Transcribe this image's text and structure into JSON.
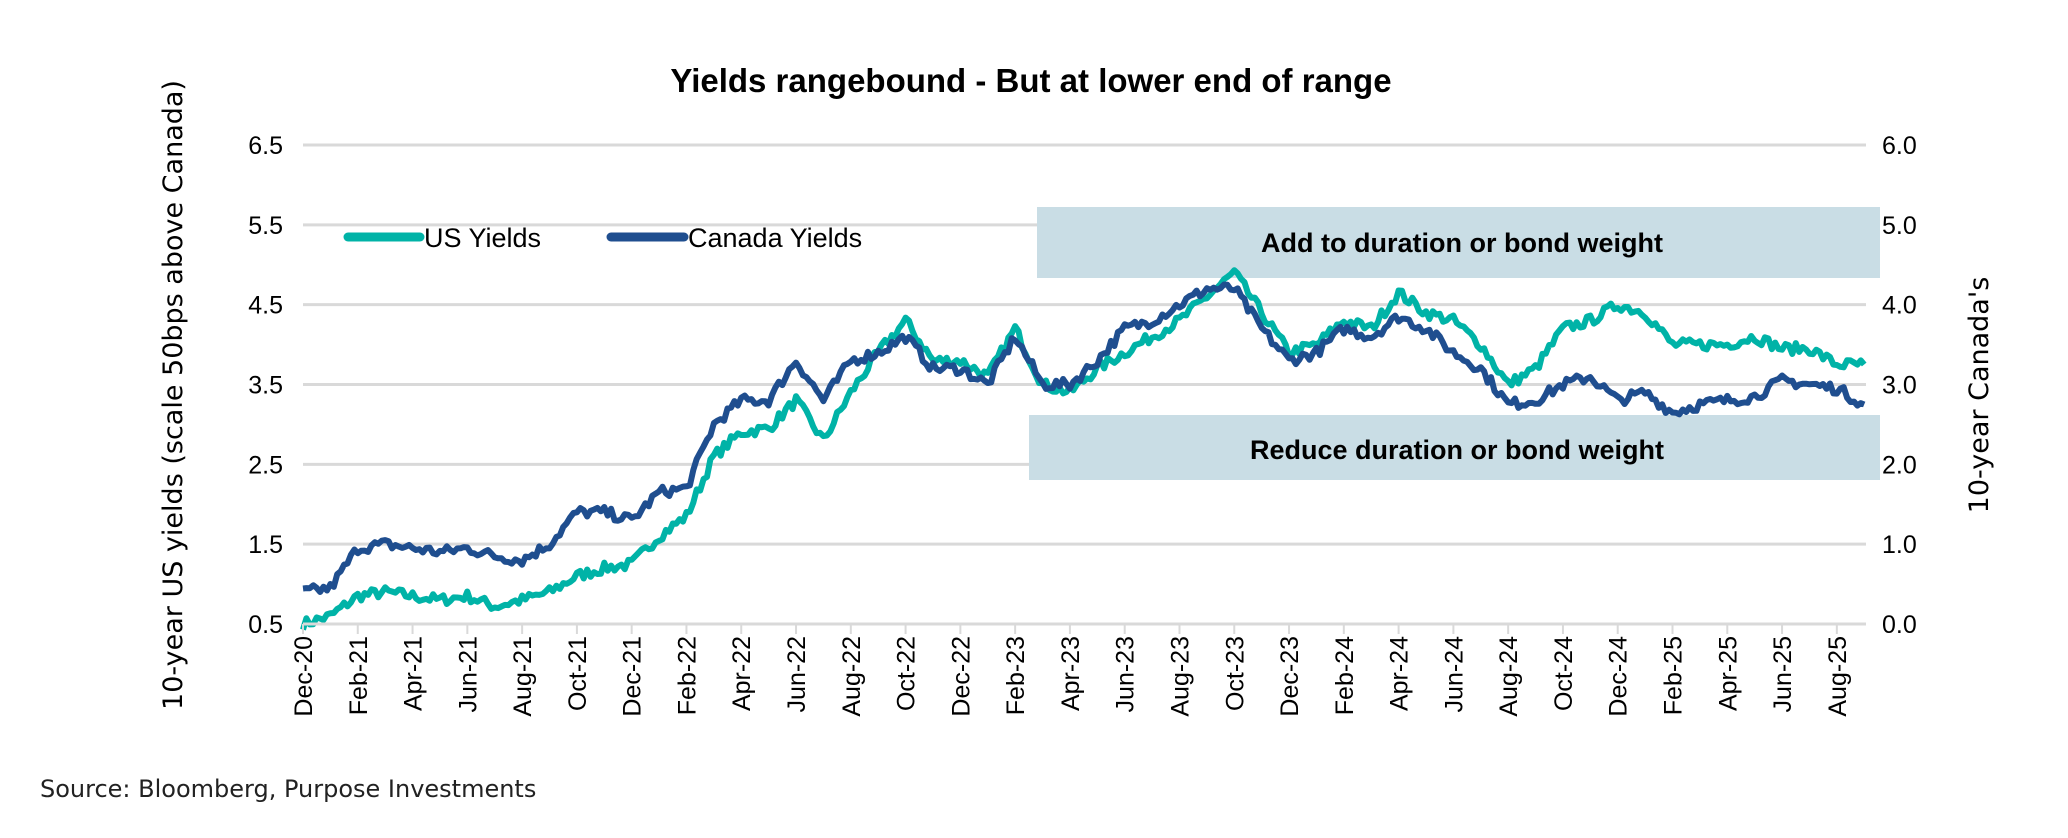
{
  "chart_data": {
    "type": "line",
    "title": "Yields rangebound - But at lower end of range",
    "ylabel_left": "10-year US yields (scale 50bps above Canada)",
    "ylabel_right": "10-year Canada's",
    "ylim_left": [
      0.5,
      6.5
    ],
    "ylim_right": [
      0.0,
      6.0
    ],
    "yticks_left": [
      "0.5",
      "1.5",
      "2.5",
      "3.5",
      "4.5",
      "5.5",
      "6.5"
    ],
    "yticks_right": [
      "0.0",
      "1.0",
      "2.0",
      "3.0",
      "4.0",
      "5.0",
      "6.0"
    ],
    "grid": true,
    "legend_placement": "top-left",
    "xticks": [
      "Dec-20",
      "Feb-21",
      "Apr-21",
      "Jun-21",
      "Aug-21",
      "Oct-21",
      "Dec-21",
      "Feb-22",
      "Apr-22",
      "Jun-22",
      "Aug-22",
      "Oct-22",
      "Dec-22",
      "Feb-23",
      "Apr-23",
      "Jun-23",
      "Aug-23",
      "Oct-23",
      "Dec-23",
      "Feb-24",
      "Apr-24",
      "Jun-24",
      "Aug-24",
      "Oct-24",
      "Dec-24",
      "Feb-25",
      "Apr-25",
      "Jun-25",
      "Aug-25"
    ],
    "x": [
      "Dec-20",
      "Jan-21",
      "Feb-21",
      "Mar-21",
      "Apr-21",
      "May-21",
      "Jun-21",
      "Jul-21",
      "Aug-21",
      "Sep-21",
      "Oct-21",
      "Nov-21",
      "Dec-21",
      "Jan-22",
      "Feb-22",
      "Mar-22",
      "Apr-22",
      "May-22",
      "Jun-22",
      "Jul-22",
      "Aug-22",
      "Sep-22",
      "Oct-22",
      "Nov-22",
      "Dec-22",
      "Jan-23",
      "Feb-23",
      "Mar-23",
      "Apr-23",
      "May-23",
      "Jun-23",
      "Jul-23",
      "Aug-23",
      "Sep-23",
      "Oct-23",
      "Nov-23",
      "Dec-23",
      "Jan-24",
      "Feb-24",
      "Mar-24",
      "Apr-24",
      "May-24",
      "Jun-24",
      "Jul-24",
      "Aug-24",
      "Sep-24",
      "Oct-24",
      "Nov-24",
      "Dec-24",
      "Jan-25",
      "Feb-25",
      "Mar-25",
      "Apr-25",
      "May-25",
      "Jun-25",
      "Jul-25",
      "Aug-25",
      "Sep-25"
    ],
    "series": [
      {
        "name": "US Yields",
        "axis": "left",
        "color": "#00b3a7",
        "values": [
          0.5,
          0.6,
          0.85,
          0.9,
          0.85,
          0.8,
          0.85,
          0.72,
          0.8,
          0.9,
          1.1,
          1.2,
          1.25,
          1.6,
          1.85,
          2.6,
          2.9,
          2.95,
          3.3,
          2.8,
          3.4,
          3.9,
          4.3,
          3.8,
          3.8,
          3.6,
          4.2,
          3.5,
          3.4,
          3.7,
          3.9,
          4.1,
          4.3,
          4.6,
          4.9,
          4.4,
          3.9,
          4.0,
          4.3,
          4.2,
          4.65,
          4.4,
          4.3,
          4.0,
          3.5,
          3.7,
          4.2,
          4.3,
          4.5,
          4.4,
          4.0,
          4.0,
          4.0,
          4.1,
          3.95,
          3.95,
          3.75,
          3.75
        ]
      },
      {
        "name": "Canada Yields",
        "axis": "right",
        "color": "#1f4e8f",
        "values": [
          0.4,
          0.45,
          0.95,
          1.0,
          0.95,
          0.9,
          0.95,
          0.85,
          0.8,
          1.0,
          1.4,
          1.4,
          1.3,
          1.65,
          1.7,
          2.5,
          2.8,
          2.8,
          3.3,
          2.8,
          3.3,
          3.4,
          3.6,
          3.2,
          3.2,
          3.0,
          3.6,
          3.0,
          3.0,
          3.3,
          3.7,
          3.8,
          4.0,
          4.2,
          4.2,
          3.7,
          3.3,
          3.4,
          3.7,
          3.6,
          3.85,
          3.7,
          3.4,
          3.2,
          2.75,
          2.8,
          3.0,
          3.1,
          2.8,
          2.9,
          2.65,
          2.75,
          2.8,
          2.85,
          3.05,
          3.0,
          2.95,
          2.75
        ]
      }
    ],
    "annotations": [
      "Add to duration or bond weight",
      "Reduce duration or bond weight"
    ],
    "annotation_color": "#c9dde5",
    "source": "Source: Bloomberg, Purpose Investments"
  }
}
